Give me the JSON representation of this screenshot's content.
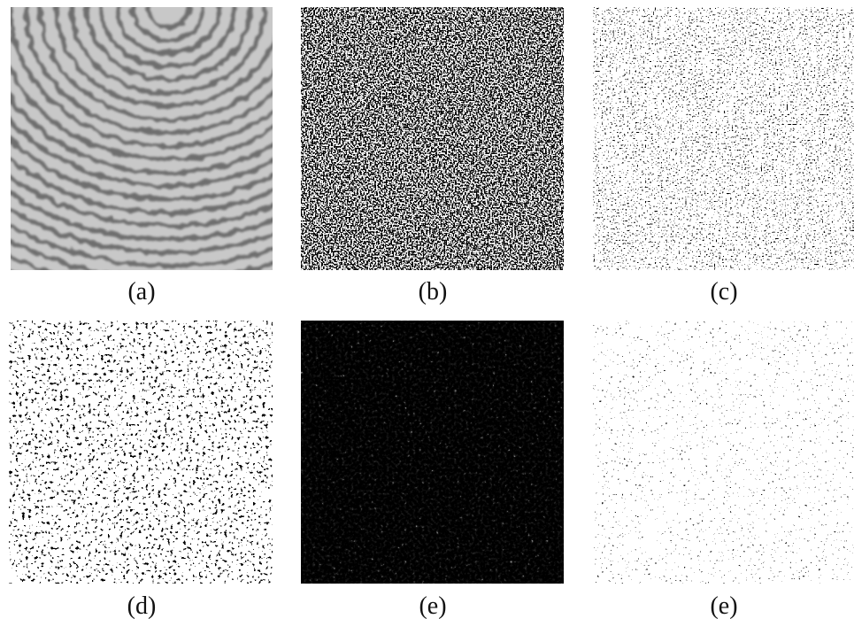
{
  "panels": [
    {
      "label": "(a)"
    },
    {
      "label": "(b)"
    },
    {
      "label": "(c)"
    },
    {
      "label": "(d)"
    },
    {
      "label": "(e)"
    },
    {
      "label": "(e)"
    }
  ]
}
